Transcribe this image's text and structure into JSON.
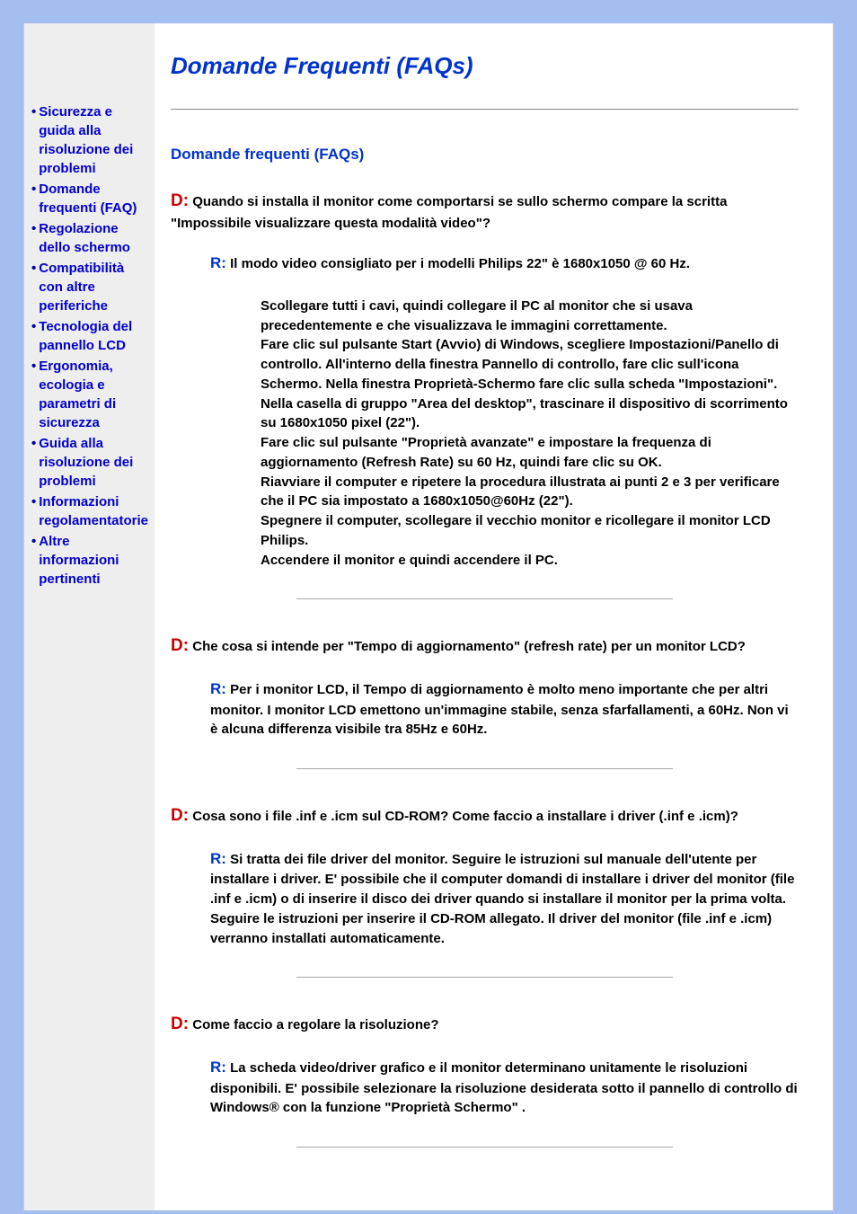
{
  "sidebar": {
    "items": [
      {
        "label": "Sicurezza e guida alla risoluzione dei problemi"
      },
      {
        "label": "Domande frequenti (FAQ)"
      },
      {
        "label": "Regolazione dello schermo"
      },
      {
        "label": "Compatibilità con altre periferiche"
      },
      {
        "label": "Tecnologia del pannello LCD"
      },
      {
        "label": "Ergonomia, ecologia e parametri di sicurezza"
      },
      {
        "label": "Guida alla risoluzione dei problemi"
      },
      {
        "label": "Informazioni regolamentatorie"
      },
      {
        "label": "Altre informazioni pertinenti"
      }
    ]
  },
  "main": {
    "title": "Domande Frequenti (FAQs)",
    "section_title": "Domande frequenti (FAQs)",
    "q_label": "D:",
    "a_label": "R:",
    "qa": [
      {
        "q": "Quando si installa il monitor come comportarsi se sullo schermo compare la scritta \"Impossibile visualizzare questa modalità video\"?",
        "a": "Il modo video consigliato per i modelli Philips 22\" è 1680x1050 @ 60 Hz.",
        "steps": [
          "Scollegare tutti i cavi, quindi collegare il PC al monitor che si usava precedentemente e che visualizzava le immagini correttamente.",
          "Fare clic sul pulsante Start (Avvio) di Windows, scegliere Impostazioni/Panello di controllo. All'interno della finestra Pannello di controllo, fare clic sull'icona Schermo. Nella finestra Proprietà-Schermo fare clic sulla scheda \"Impostazioni\". Nella casella di gruppo \"Area del desktop\", trascinare il dispositivo di scorrimento su 1680x1050 pixel (22\").",
          "Fare clic sul pulsante \"Proprietà avanzate\" e impostare la frequenza di aggiornamento (Refresh Rate) su 60 Hz, quindi fare clic su OK.",
          "Riavviare il computer e ripetere la procedura illustrata ai punti 2 e 3 per verificare che il PC sia impostato a 1680x1050@60Hz (22\").",
          "Spegnere il computer, scollegare il vecchio monitor e ricollegare il monitor LCD Philips.",
          "Accendere il monitor e quindi accendere il PC."
        ]
      },
      {
        "q": "Che cosa si intende per \"Tempo di aggiornamento\" (refresh rate) per un monitor LCD?",
        "a": "Per i monitor LCD, il Tempo di aggiornamento è molto meno importante che per altri monitor. I monitor LCD emettono un'immagine stabile, senza sfarfallamenti, a 60Hz. Non vi è alcuna differenza visibile tra 85Hz e 60Hz.",
        "steps": []
      },
      {
        "q": "Cosa sono i file .inf e .icm sul CD-ROM? Come faccio a installare i driver (.inf e .icm)?",
        "a": "Si tratta dei file driver del monitor. Seguire le istruzioni sul manuale dell'utente per installare i driver. E' possibile che il computer domandi di installare i driver del monitor (file .inf e .icm) o di inserire il disco dei driver quando si installare il monitor per la prima volta. Seguire le istruzioni per inserire il CD-ROM allegato. Il driver del monitor (file .inf e .icm) verranno installati automaticamente.",
        "steps": []
      },
      {
        "q": "Come faccio a regolare la risoluzione?",
        "a": "La scheda video/driver grafico e il monitor determinano unitamente le risoluzioni disponibili. E' possibile selezionare la risoluzione desiderata sotto il pannello di controllo di Windows® con la funzione \"Proprietà Schermo\" .",
        "steps": []
      }
    ]
  },
  "styling": {
    "page_bg": "#a4bef0",
    "sidebar_bg": "#eeeeee",
    "main_bg": "#ffffff",
    "link_color": "#0000cc",
    "title_color": "#0033cc",
    "q_color": "#cc0000",
    "a_color": "#0033cc",
    "body_font": "Arial",
    "title_fontsize": 26,
    "section_title_fontsize": 17,
    "body_fontsize": 15,
    "q_label_fontsize": 19,
    "a_label_fontsize": 17
  }
}
